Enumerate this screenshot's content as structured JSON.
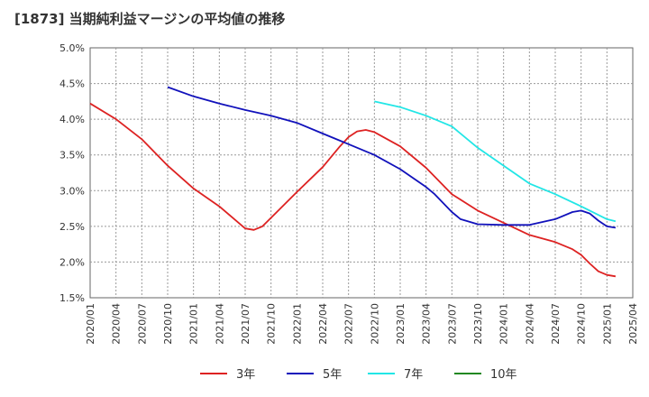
{
  "chart_data": {
    "type": "line",
    "title": "[1873]  当期純利益マージンの平均値の推移",
    "xlabel": "",
    "ylabel": "",
    "x_ticks": [
      "2020/01",
      "2020/04",
      "2020/07",
      "2020/10",
      "2021/01",
      "2021/04",
      "2021/07",
      "2021/10",
      "2022/01",
      "2022/04",
      "2022/07",
      "2022/10",
      "2023/01",
      "2023/04",
      "2023/07",
      "2023/10",
      "2024/01",
      "2024/04",
      "2024/07",
      "2024/10",
      "2025/01",
      "2025/04"
    ],
    "y_ticks": [
      "1.5%",
      "2.0%",
      "2.5%",
      "3.0%",
      "3.5%",
      "4.0%",
      "4.5%",
      "5.0%"
    ],
    "ylim": [
      1.5,
      5.0
    ],
    "grid": true,
    "legend_position": "bottom",
    "series": [
      {
        "name": "3年",
        "color": "#dd2222",
        "points": [
          [
            "2020/01",
            4.22
          ],
          [
            "2020/04",
            4.0
          ],
          [
            "2020/07",
            3.72
          ],
          [
            "2020/10",
            3.35
          ],
          [
            "2021/01",
            3.03
          ],
          [
            "2021/04",
            2.78
          ],
          [
            "2021/07",
            2.47
          ],
          [
            "2021/08",
            2.45
          ],
          [
            "2021/09",
            2.5
          ],
          [
            "2021/10",
            2.62
          ],
          [
            "2022/01",
            2.98
          ],
          [
            "2022/04",
            3.33
          ],
          [
            "2022/06",
            3.62
          ],
          [
            "2022/07",
            3.75
          ],
          [
            "2022/08",
            3.83
          ],
          [
            "2022/09",
            3.85
          ],
          [
            "2022/10",
            3.82
          ],
          [
            "2023/01",
            3.62
          ],
          [
            "2023/04",
            3.32
          ],
          [
            "2023/07",
            2.95
          ],
          [
            "2023/10",
            2.72
          ],
          [
            "2024/01",
            2.55
          ],
          [
            "2024/04",
            2.38
          ],
          [
            "2024/07",
            2.28
          ],
          [
            "2024/09",
            2.18
          ],
          [
            "2024/10",
            2.1
          ],
          [
            "2024/11",
            1.98
          ],
          [
            "2024/12",
            1.87
          ],
          [
            "2025/01",
            1.82
          ],
          [
            "2025/02",
            1.8
          ]
        ]
      },
      {
        "name": "5年",
        "color": "#1111bb",
        "points": [
          [
            "2020/10",
            4.45
          ],
          [
            "2021/01",
            4.32
          ],
          [
            "2021/04",
            4.22
          ],
          [
            "2021/07",
            4.13
          ],
          [
            "2021/10",
            4.05
          ],
          [
            "2022/01",
            3.95
          ],
          [
            "2022/04",
            3.8
          ],
          [
            "2022/07",
            3.65
          ],
          [
            "2022/10",
            3.5
          ],
          [
            "2023/01",
            3.3
          ],
          [
            "2023/04",
            3.05
          ],
          [
            "2023/05",
            2.95
          ],
          [
            "2023/07",
            2.7
          ],
          [
            "2023/08",
            2.6
          ],
          [
            "2023/10",
            2.53
          ],
          [
            "2024/01",
            2.52
          ],
          [
            "2024/04",
            2.52
          ],
          [
            "2024/07",
            2.6
          ],
          [
            "2024/09",
            2.7
          ],
          [
            "2024/10",
            2.72
          ],
          [
            "2024/11",
            2.68
          ],
          [
            "2024/12",
            2.58
          ],
          [
            "2025/01",
            2.5
          ],
          [
            "2025/02",
            2.48
          ]
        ]
      },
      {
        "name": "7年",
        "color": "#22e6e6",
        "points": [
          [
            "2022/10",
            4.25
          ],
          [
            "2023/01",
            4.17
          ],
          [
            "2023/04",
            4.05
          ],
          [
            "2023/07",
            3.9
          ],
          [
            "2023/10",
            3.6
          ],
          [
            "2024/01",
            3.35
          ],
          [
            "2024/04",
            3.1
          ],
          [
            "2024/07",
            2.95
          ],
          [
            "2024/10",
            2.78
          ],
          [
            "2025/01",
            2.6
          ],
          [
            "2025/02",
            2.57
          ]
        ]
      },
      {
        "name": "10年",
        "color": "#228822",
        "points": []
      }
    ]
  }
}
